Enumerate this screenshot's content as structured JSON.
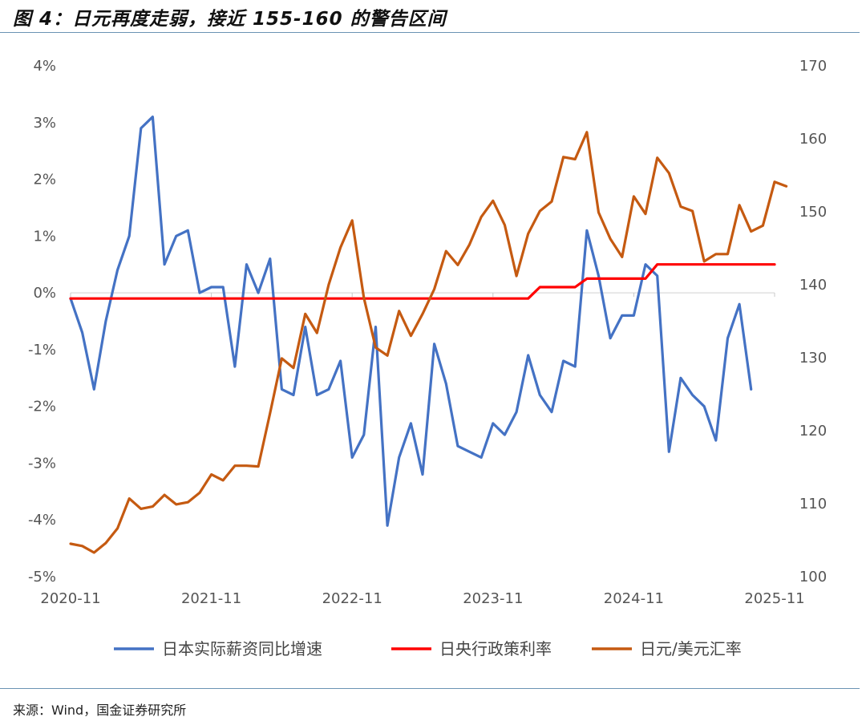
{
  "header": {
    "title": "图 4：日元再度走弱，接近 155-160 的警告区间"
  },
  "footer": {
    "source": "来源：Wind，国金证券研究所"
  },
  "chart_data": {
    "type": "line",
    "title": "图 4：日元再度走弱，接近 155-160 的警告区间",
    "x_tick_labels": [
      "2020-11",
      "2021-11",
      "2022-11",
      "2023-11",
      "2024-11",
      "2025-11"
    ],
    "y_left": {
      "ticks": [
        4,
        3,
        2,
        1,
        0,
        -1,
        -2,
        -3,
        -4,
        -5
      ],
      "tick_labels": [
        "4%",
        "3%",
        "2%",
        "1%",
        "0%",
        "-1%",
        "-2%",
        "-3%",
        "-4%",
        "-5%"
      ],
      "range": [
        -5,
        4
      ]
    },
    "y_right": {
      "ticks": [
        170,
        160,
        150,
        140,
        130,
        120,
        110,
        100
      ],
      "range": [
        100,
        170
      ]
    },
    "grid": false,
    "legend_position": "bottom",
    "series": [
      {
        "name": "日本实际薪资同比增速",
        "axis": "left",
        "color": "#4472c4",
        "x_start": "2020-11",
        "values": [
          -0.1,
          -0.7,
          -1.7,
          -0.5,
          0.4,
          1.0,
          2.9,
          3.1,
          0.5,
          1.0,
          1.1,
          0.0,
          0.1,
          0.1,
          -1.3,
          0.5,
          0.0,
          0.6,
          -1.7,
          -1.8,
          -0.6,
          -1.8,
          -1.7,
          -1.2,
          -2.9,
          -2.5,
          -0.6,
          -4.1,
          -2.9,
          -2.3,
          -3.2,
          -0.9,
          -1.6,
          -2.7,
          -2.8,
          -2.9,
          -2.3,
          -2.5,
          -2.1,
          -1.1,
          -1.8,
          -2.1,
          -1.2,
          -1.3,
          1.1,
          0.3,
          -0.8,
          -0.4,
          -0.4,
          0.5,
          0.3,
          -2.8,
          -1.5,
          -1.8,
          -2.0,
          -2.6,
          -0.8,
          -0.2,
          -1.7
        ]
      },
      {
        "name": "日央行政策利率",
        "axis": "left",
        "color": "#ff0000",
        "segments": [
          {
            "from": "2020-11",
            "to": "2024-02",
            "value": -0.1
          },
          {
            "from": "2024-03",
            "to": "2024-06",
            "value": 0.1
          },
          {
            "from": "2024-07",
            "to": "2024-12",
            "value": 0.25
          },
          {
            "from": "2025-01",
            "to": "2025-11",
            "value": 0.5
          }
        ]
      },
      {
        "name": "日元/美元汇率",
        "axis": "right",
        "color": "#c55a11",
        "x_start": "2020-11",
        "values": [
          104.5,
          104.2,
          103.3,
          104.6,
          106.6,
          110.7,
          109.3,
          109.6,
          111.2,
          109.9,
          110.2,
          111.5,
          114.0,
          113.2,
          115.2,
          115.2,
          115.1,
          122.4,
          129.9,
          128.6,
          136.0,
          133.4,
          140.0,
          145.1,
          148.8,
          138.2,
          131.4,
          130.3,
          136.4,
          133.0,
          136.0,
          139.4,
          144.6,
          142.7,
          145.5,
          149.3,
          151.5,
          148.2,
          141.2,
          147.0,
          150.1,
          151.4,
          157.5,
          157.2,
          160.9,
          149.9,
          146.3,
          143.8,
          152.1,
          149.7,
          157.4,
          155.3,
          150.7,
          150.1,
          143.2,
          144.2,
          144.2,
          150.9,
          147.3,
          148.1,
          154.1,
          153.5
        ]
      }
    ]
  }
}
